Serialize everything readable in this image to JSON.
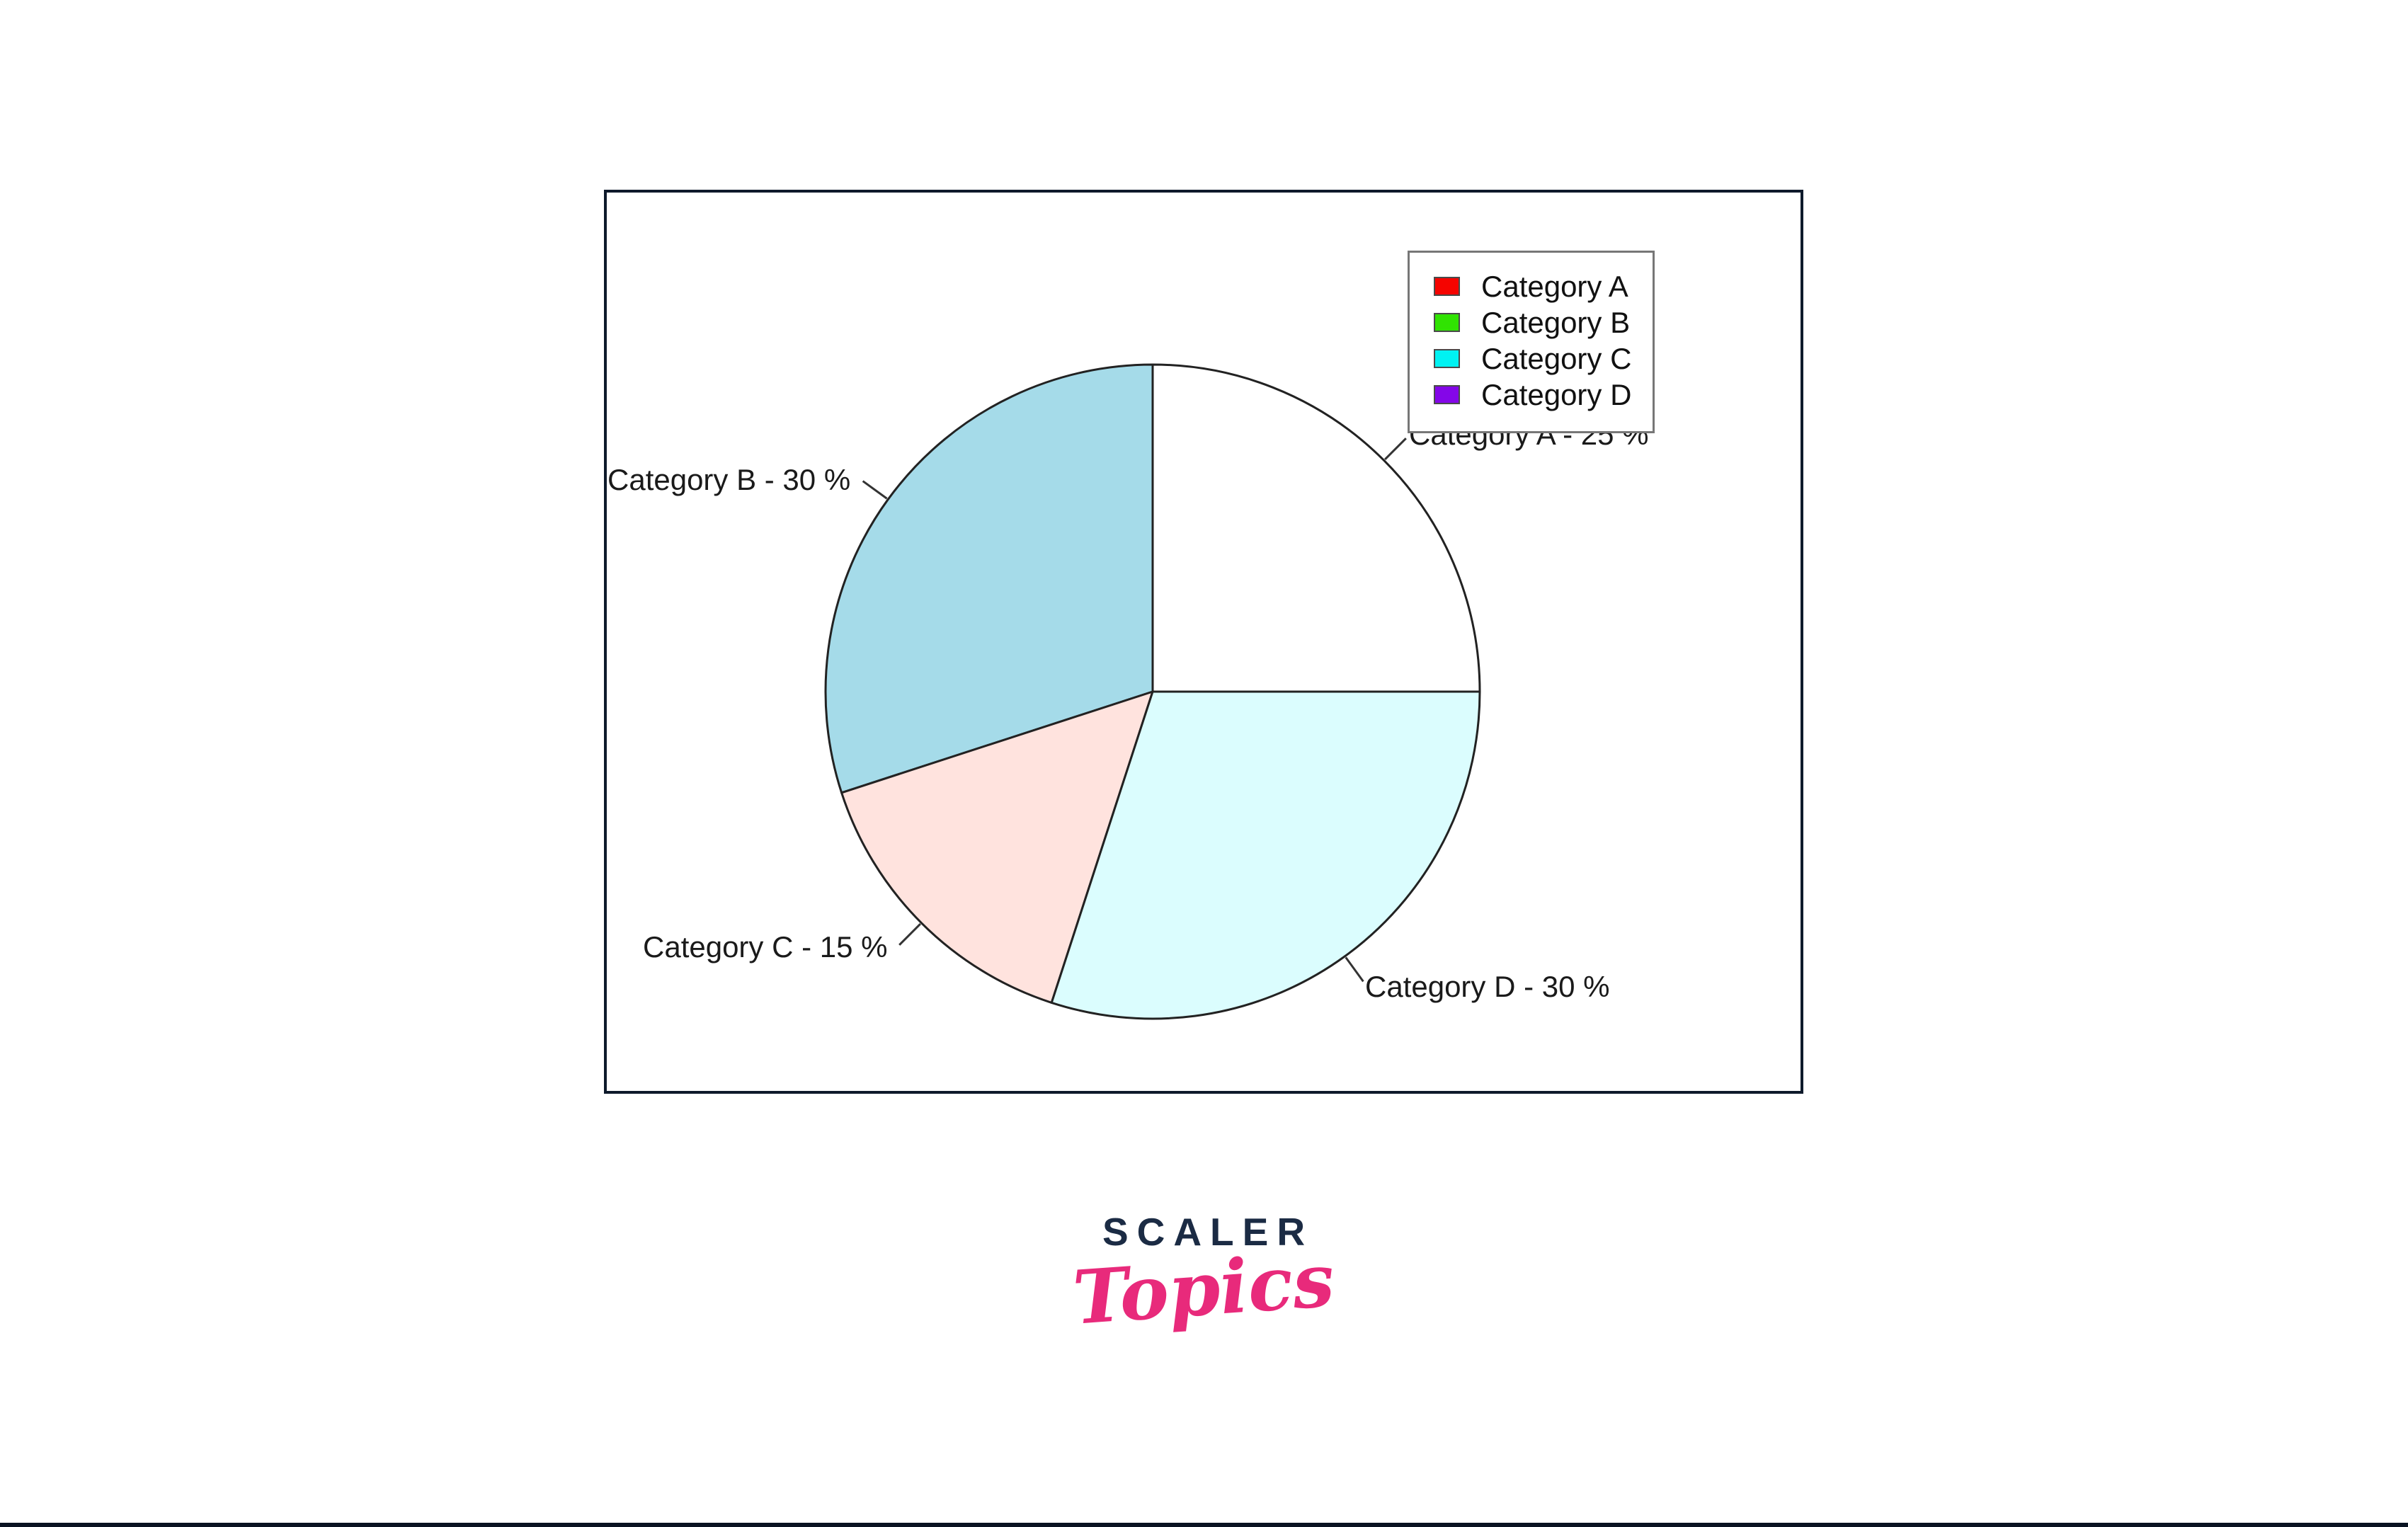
{
  "page": {
    "background": "#ffffff",
    "bottom_bar_color": "#0a1322"
  },
  "panel": {
    "border_color": "#0e1a2b"
  },
  "chart_data": {
    "type": "pie",
    "categories": [
      "Category A",
      "Category B",
      "Category C",
      "Category D"
    ],
    "values": [
      25,
      30,
      15,
      30
    ],
    "unit": "%",
    "labels": [
      "Category A - 25 %",
      "Category B - 30 %",
      "Category C - 15 %",
      "Category D - 30 %"
    ],
    "slice_colors": [
      "#ffffff",
      "#a5dbe9",
      "#ffe3de",
      "#dbfdfe"
    ],
    "slice_stroke_color": "#222222",
    "start_angle_deg": 0,
    "direction": "counterclockwise",
    "legend_position": "top-right",
    "title": ""
  },
  "legend": {
    "items": [
      {
        "label": "Category A",
        "color": "#f50400"
      },
      {
        "label": "Category B",
        "color": "#30e302"
      },
      {
        "label": "Category C",
        "color": "#00f2f2"
      },
      {
        "label": "Category D",
        "color": "#8406e8"
      }
    ]
  },
  "logo": {
    "brand": "SCALER",
    "sub": "Topics",
    "brand_color": "#1b2b44",
    "sub_color": "#e82a7b"
  }
}
